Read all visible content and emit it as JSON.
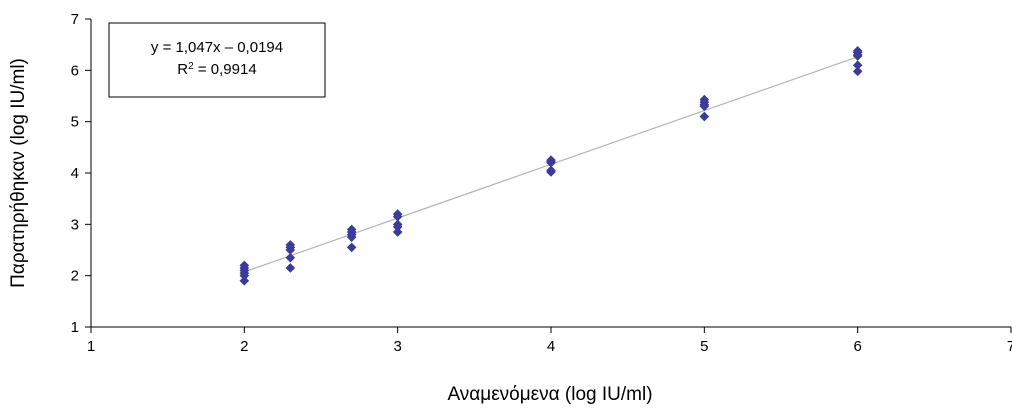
{
  "chart_data": {
    "type": "scatter",
    "title": "",
    "xlabel": "Αναμενόμενα (log IU/ml)",
    "ylabel": "Παρατηρήθηκαν (log IU/ml)",
    "xlim": [
      1,
      7
    ],
    "ylim": [
      1,
      7
    ],
    "xticks": [
      "1",
      "2",
      "3",
      "4",
      "5",
      "6",
      "7"
    ],
    "yticks": [
      "1",
      "2",
      "3",
      "4",
      "5",
      "6",
      "7"
    ],
    "grid": false,
    "marker_color": "#3b3b9a",
    "trendline_color": "#b4b4b4",
    "trendline": {
      "slope": 1.047,
      "intercept": -0.0194
    },
    "equation_box": {
      "line1": "y = 1,047x – 0,0194",
      "r2_prefix": "R",
      "r2_sup": "2",
      "r2_suffix": " = 0,9914"
    },
    "points": [
      {
        "x": 2,
        "y": 2.2
      },
      {
        "x": 2,
        "y": 2.15
      },
      {
        "x": 2,
        "y": 2.1
      },
      {
        "x": 2,
        "y": 2.05
      },
      {
        "x": 2,
        "y": 2.0
      },
      {
        "x": 2,
        "y": 1.9
      },
      {
        "x": 2.3,
        "y": 2.6
      },
      {
        "x": 2.3,
        "y": 2.55
      },
      {
        "x": 2.3,
        "y": 2.5
      },
      {
        "x": 2.3,
        "y": 2.35
      },
      {
        "x": 2.3,
        "y": 2.15
      },
      {
        "x": 2.7,
        "y": 2.9
      },
      {
        "x": 2.7,
        "y": 2.85
      },
      {
        "x": 2.7,
        "y": 2.8
      },
      {
        "x": 2.7,
        "y": 2.75
      },
      {
        "x": 2.7,
        "y": 2.55
      },
      {
        "x": 3,
        "y": 3.2
      },
      {
        "x": 3,
        "y": 3.15
      },
      {
        "x": 3,
        "y": 3.0
      },
      {
        "x": 3,
        "y": 2.95
      },
      {
        "x": 3,
        "y": 2.85
      },
      {
        "x": 4,
        "y": 4.25
      },
      {
        "x": 4,
        "y": 4.22
      },
      {
        "x": 4,
        "y": 4.2
      },
      {
        "x": 4,
        "y": 4.05
      },
      {
        "x": 4,
        "y": 4.02
      },
      {
        "x": 5,
        "y": 5.43
      },
      {
        "x": 5,
        "y": 5.38
      },
      {
        "x": 5,
        "y": 5.33
      },
      {
        "x": 5,
        "y": 5.3
      },
      {
        "x": 5,
        "y": 5.1
      },
      {
        "x": 6,
        "y": 6.38
      },
      {
        "x": 6,
        "y": 6.35
      },
      {
        "x": 6,
        "y": 6.3
      },
      {
        "x": 6,
        "y": 6.28
      },
      {
        "x": 6,
        "y": 6.1
      },
      {
        "x": 6,
        "y": 5.98
      }
    ]
  }
}
